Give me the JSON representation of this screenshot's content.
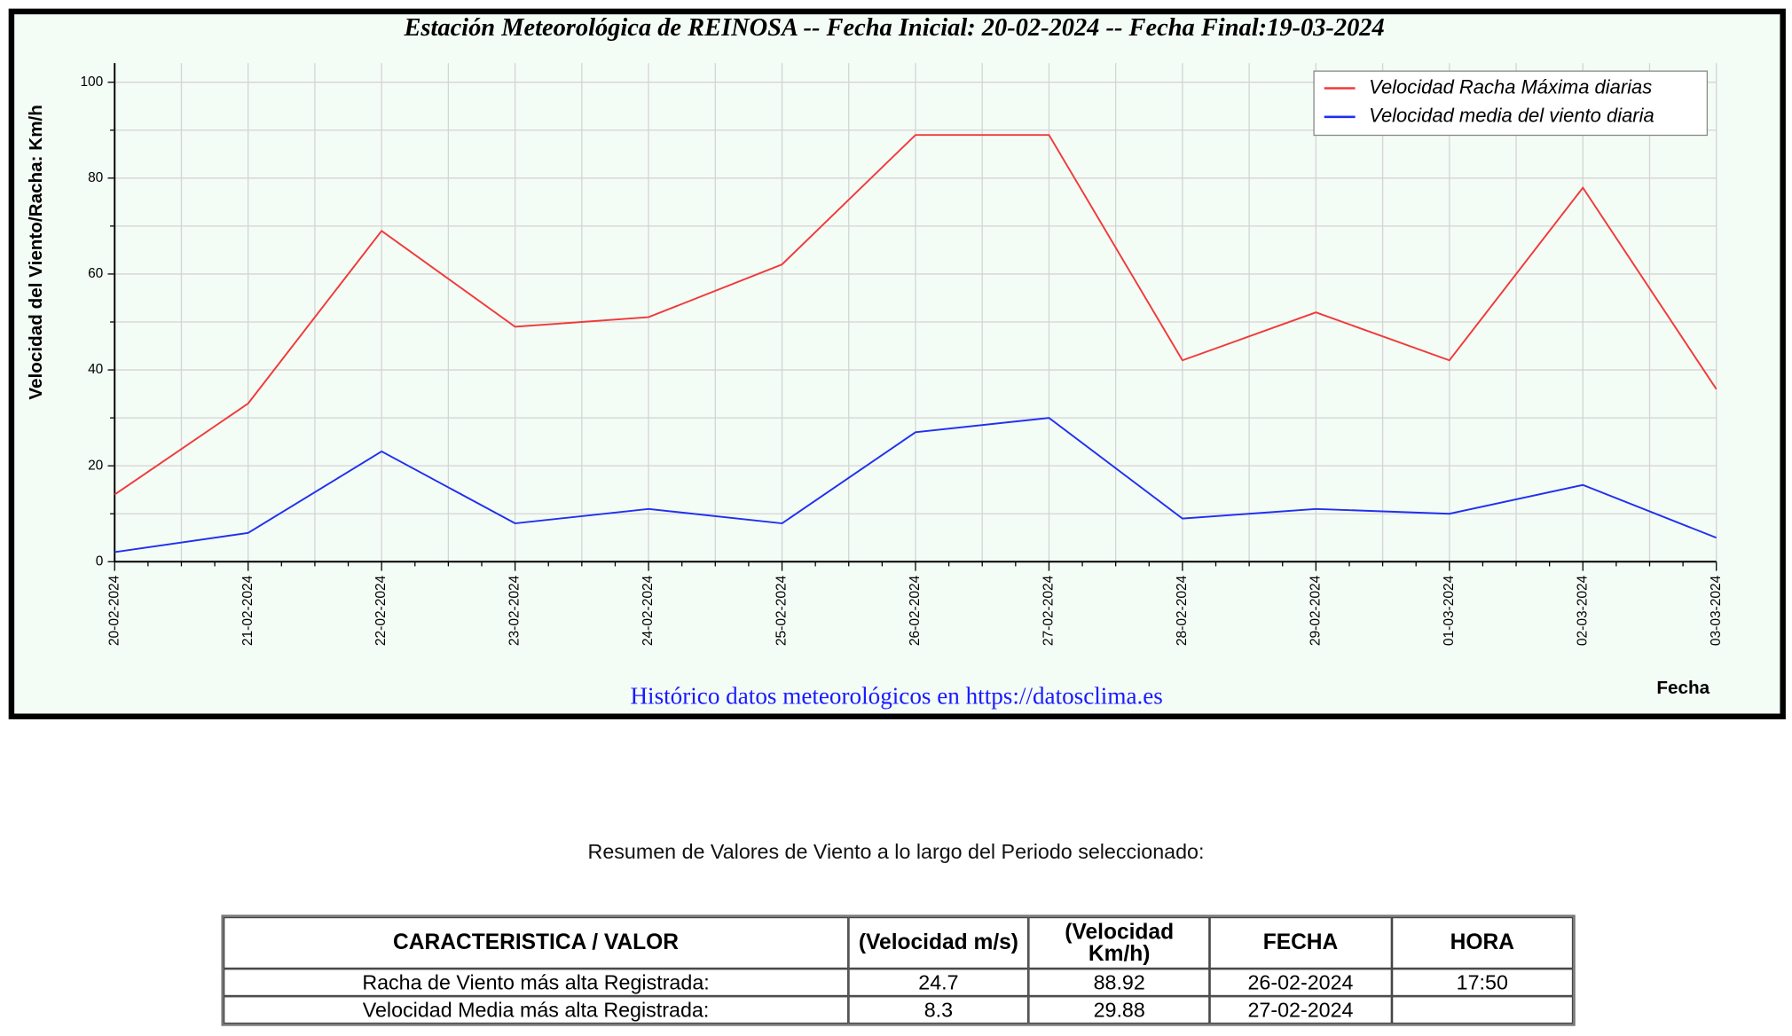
{
  "chart_data": {
    "type": "line",
    "title": "Estación Meteorológica de REINOSA -- Fecha Inicial: 20-02-2024 -- Fecha Final:19-03-2024",
    "y_label": "Velocidad del Viento/Racha: Km/h",
    "x_label": "Fecha",
    "source": "Histórico datos meteorológicos en https://datosclima.es",
    "categories": [
      "20-02-2024",
      "21-02-2024",
      "22-02-2024",
      "23-02-2024",
      "24-02-2024",
      "25-02-2024",
      "26-02-2024",
      "27-02-2024",
      "28-02-2024",
      "29-02-2024",
      "01-03-2024",
      "02-03-2024",
      "03-03-2024"
    ],
    "series": [
      {
        "name": "Velocidad Racha Máxima diarias",
        "color": "#f03a3a",
        "values": [
          14,
          33,
          69,
          49,
          51,
          62,
          89,
          89,
          42,
          52,
          42,
          78,
          36
        ]
      },
      {
        "name": "Velocidad media del viento diaria",
        "color": "#2030f0",
        "values": [
          2,
          6,
          23,
          8,
          11,
          8,
          27,
          30,
          9,
          11,
          10,
          16,
          5
        ]
      }
    ],
    "ylim": [
      0,
      104
    ],
    "yticks": [
      0,
      20,
      40,
      60,
      80,
      100
    ],
    "yminor": [
      10,
      30,
      50,
      70,
      90
    ],
    "grid": true,
    "legend": "upper right"
  },
  "summary": {
    "caption": "Resumen de Valores de Viento a lo largo del Periodo seleccionado:",
    "table": {
      "header": [
        "CARACTERISTICA / VALOR",
        "(Velocidad m/s)",
        "(Velocidad Km/h)",
        "FECHA",
        "HORA"
      ],
      "rows": [
        [
          "Racha de Viento más alta Registrada:",
          "24.7",
          "88.92",
          "26-02-2024",
          "17:50"
        ],
        [
          "Velocidad Media más alta Registrada:",
          "8.3",
          "29.88",
          "27-02-2024"
        ]
      ]
    }
  }
}
